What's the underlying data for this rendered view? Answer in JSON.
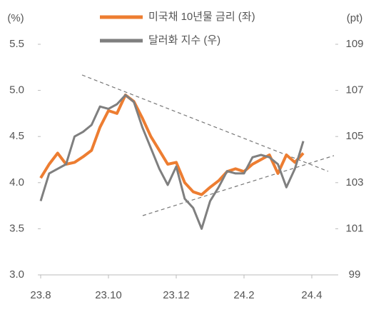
{
  "chart_data": {
    "type": "line",
    "y_label": "(%)",
    "y2_label": "(pt)",
    "categories": [
      "23.8",
      null,
      null,
      null,
      null,
      null,
      null,
      null,
      "23.10",
      null,
      null,
      null,
      null,
      null,
      null,
      null,
      "23.12",
      null,
      null,
      null,
      null,
      null,
      null,
      null,
      "24.2",
      null,
      null,
      null,
      null,
      null,
      null,
      null,
      "24.4",
      null,
      null,
      null
    ],
    "series": [
      {
        "name": "미국채 10년물 금리 (좌)",
        "color": "#ed7d31",
        "axis": "y",
        "values": [
          4.05,
          4.2,
          4.32,
          4.2,
          4.22,
          4.28,
          4.35,
          4.6,
          4.78,
          4.75,
          4.95,
          4.88,
          4.7,
          4.5,
          4.35,
          4.2,
          4.22,
          4.0,
          3.9,
          3.87,
          3.95,
          4.02,
          4.12,
          4.15,
          4.12,
          4.2,
          4.25,
          4.3,
          4.1,
          4.3,
          4.22,
          4.32,
          null,
          null,
          null,
          null
        ]
      },
      {
        "name": "달러화 지수 (우)",
        "color": "#7f7f7f",
        "axis": "y2",
        "values": [
          102.2,
          103.4,
          103.6,
          103.8,
          105.0,
          105.2,
          105.5,
          106.3,
          106.2,
          106.4,
          106.8,
          106.5,
          105.4,
          104.5,
          103.6,
          102.9,
          103.7,
          102.3,
          101.9,
          101.0,
          102.2,
          102.8,
          103.5,
          103.4,
          103.4,
          104.1,
          104.2,
          104.1,
          103.8,
          102.8,
          103.6,
          104.8,
          null,
          null,
          null,
          null
        ]
      }
    ],
    "ylim": [
      3.0,
      5.5
    ],
    "yticks": [
      {
        "value": 3.0,
        "label": "3.0"
      },
      3.5,
      {
        "value": 4.0,
        "label": "4.0"
      },
      4.5,
      {
        "value": 5.0,
        "label": "5.0"
      },
      5.5
    ],
    "y2lim": [
      99,
      109
    ],
    "y2ticks": [
      99,
      101,
      103,
      105,
      107,
      109
    ]
  }
}
